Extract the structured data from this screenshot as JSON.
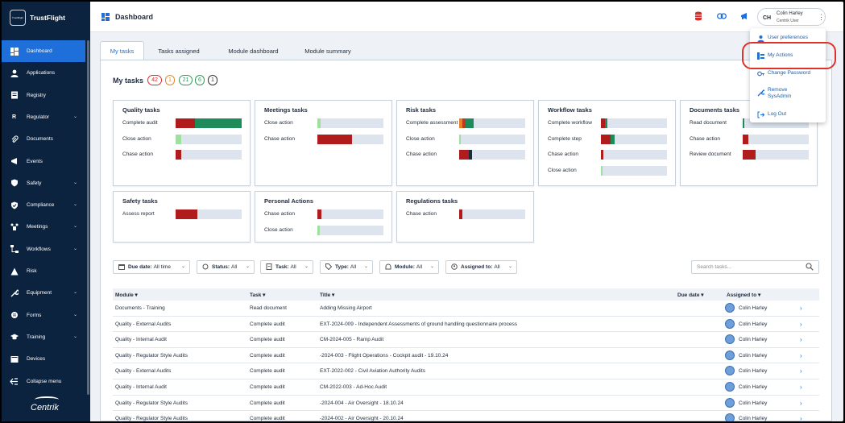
{
  "app": {
    "logo_text": "TrustFlight",
    "logo_box": "TrustFlight"
  },
  "sidebar": {
    "items": [
      {
        "label": "Dashboard",
        "icon": "dashboard-icon",
        "active": true
      },
      {
        "label": "Applications",
        "icon": "person-icon"
      },
      {
        "label": "Registry",
        "icon": "registry-icon"
      },
      {
        "label": "Regulator",
        "icon": "regulator-icon",
        "icon_text": "R",
        "chevron": true
      },
      {
        "label": "Documents",
        "icon": "paperclip-icon"
      },
      {
        "label": "Events",
        "icon": "megaphone-icon"
      },
      {
        "label": "Safety",
        "icon": "shield-icon",
        "chevron": true
      },
      {
        "label": "Compliance",
        "icon": "compliance-shield-icon",
        "chevron": true
      },
      {
        "label": "Meetings",
        "icon": "meetings-icon",
        "chevron": true
      },
      {
        "label": "Workflows",
        "icon": "workflows-icon",
        "chevron": true
      },
      {
        "label": "Risk",
        "icon": "warning-icon"
      },
      {
        "label": "Equipment",
        "icon": "wrench-icon",
        "chevron": true
      },
      {
        "label": "Forms",
        "icon": "forms-icon",
        "chevron": true
      },
      {
        "label": "Training",
        "icon": "graduation-cap-icon",
        "chevron": true
      },
      {
        "label": "Devices",
        "icon": "devices-icon"
      }
    ],
    "collapse_label": "Collapse menu",
    "footer_brand": "Centrik"
  },
  "header": {
    "title": "Dashboard",
    "user": {
      "initials": "CH",
      "name": "Colin Harley",
      "role": "Centrik User"
    },
    "colors": {
      "stack_icon": "#d62d2d",
      "link_icon": "#1e6fd9",
      "announce_icon": "#1e6fd9"
    }
  },
  "tabs": [
    "My tasks",
    "Tasks assigned",
    "Module dashboard",
    "Module summary"
  ],
  "my_tasks": {
    "heading": "My tasks",
    "counts": [
      {
        "value": "42",
        "color": "#d62d2d"
      },
      {
        "value": "1",
        "color": "#e08a2a"
      },
      {
        "value": "21",
        "color": "#2e9a5a"
      },
      {
        "value": "6",
        "color": "#2e9a5a"
      },
      {
        "value": "1",
        "color": "#333333"
      }
    ]
  },
  "cards": [
    {
      "title": "Quality tasks",
      "rows": [
        {
          "label": "Complete audit",
          "segments": [
            {
              "frac": 0.29,
              "color": "#b01c1c"
            },
            {
              "frac": 0.71,
              "color": "#1f8a5a"
            }
          ]
        },
        {
          "label": "Close action",
          "segments": [
            {
              "frac": 0.08,
              "color": "#9fe0a0"
            }
          ]
        },
        {
          "label": "Chase action",
          "segments": [
            {
              "frac": 0.09,
              "color": "#b01c1c"
            }
          ]
        }
      ]
    },
    {
      "title": "Meetings tasks",
      "rows": [
        {
          "label": "Close action",
          "segments": [
            {
              "frac": 0.05,
              "color": "#9fe0a0"
            }
          ]
        },
        {
          "label": "Chase action",
          "segments": [
            {
              "frac": 0.53,
              "color": "#b01c1c"
            }
          ]
        }
      ]
    },
    {
      "title": "Risk tasks",
      "rows": [
        {
          "label": "Complete assessment",
          "segments": [
            {
              "frac": 0.05,
              "color": "#e8822a"
            },
            {
              "frac": 0.05,
              "color": "#c23a1c"
            },
            {
              "frac": 0.12,
              "color": "#1f8a5a"
            }
          ]
        },
        {
          "label": "Close action",
          "segments": [
            {
              "frac": 0.03,
              "color": "#9fe0a0"
            }
          ]
        },
        {
          "label": "Chase action",
          "segments": [
            {
              "frac": 0.15,
              "color": "#b01c1c"
            },
            {
              "frac": 0.04,
              "color": "#1f2a3a"
            }
          ]
        }
      ]
    },
    {
      "title": "Workflow tasks",
      "rows": [
        {
          "label": "Complete workflow",
          "segments": [
            {
              "frac": 0.06,
              "color": "#b01c1c"
            },
            {
              "frac": 0.04,
              "color": "#1f8a5a"
            }
          ]
        },
        {
          "label": "Complete step",
          "segments": [
            {
              "frac": 0.15,
              "color": "#b01c1c"
            },
            {
              "frac": 0.06,
              "color": "#1f8a5a"
            }
          ]
        },
        {
          "label": "Chase action",
          "segments": [
            {
              "frac": 0.04,
              "color": "#b01c1c"
            }
          ]
        },
        {
          "label": "Close action",
          "segments": [
            {
              "frac": 0.03,
              "color": "#9fe0a0"
            }
          ]
        }
      ]
    },
    {
      "title": "Documents tasks",
      "rows": [
        {
          "label": "Read document",
          "segments": [
            {
              "frac": 0.03,
              "color": "#1f8a5a"
            }
          ]
        },
        {
          "label": "Chase action",
          "segments": [
            {
              "frac": 0.09,
              "color": "#b01c1c"
            }
          ]
        },
        {
          "label": "Review document",
          "segments": [
            {
              "frac": 0.2,
              "color": "#b01c1c"
            }
          ]
        }
      ]
    },
    {
      "title": "Safety tasks",
      "rows": [
        {
          "label": "Assess report",
          "segments": [
            {
              "frac": 0.33,
              "color": "#b01c1c"
            }
          ]
        }
      ]
    },
    {
      "title": "Personal Actions",
      "rows": [
        {
          "label": "Chase action",
          "segments": [
            {
              "frac": 0.06,
              "color": "#b01c1c"
            }
          ]
        },
        {
          "label": "Close action",
          "segments": [
            {
              "frac": 0.04,
              "color": "#9fe0a0"
            }
          ]
        }
      ]
    },
    {
      "title": "Regulations tasks",
      "rows": [
        {
          "label": "Chase action",
          "segments": [
            {
              "frac": 0.05,
              "color": "#b01c1c"
            }
          ]
        }
      ]
    }
  ],
  "filters": [
    {
      "label": "Due date:",
      "value": "All time",
      "icon": "calendar-icon"
    },
    {
      "label": "Status:",
      "value": "All",
      "icon": "status-circle-icon"
    },
    {
      "label": "Task:",
      "value": "All",
      "icon": "task-icon"
    },
    {
      "label": "Type:",
      "value": "All",
      "icon": "tag-icon"
    },
    {
      "label": "Module:",
      "value": "All",
      "icon": "module-icon"
    },
    {
      "label": "Assigned to:",
      "value": "All",
      "icon": "assignee-icon"
    }
  ],
  "search": {
    "placeholder": "Search tasks..."
  },
  "table": {
    "headers": [
      "Module",
      "Task",
      "Title",
      "Due date",
      "Assigned to"
    ],
    "rows": [
      {
        "module": "Documents - Training",
        "task": "Read document",
        "title": "Adding Missing Airport",
        "due": "",
        "assignee": "Colin Harley"
      },
      {
        "module": "Quality - External Audits",
        "task": "Complete audit",
        "title": "EXT-2024-009 - Independent Assessments of ground handling questionnaire process",
        "due": "",
        "assignee": "Colin Harley"
      },
      {
        "module": "Quality - Internal Audit",
        "task": "Complete audit",
        "title": "CM-2024-005 - Ramp Audit",
        "due": "",
        "assignee": "Colin Harley"
      },
      {
        "module": "Quality - Regulator Style Audits",
        "task": "Complete audit",
        "title": "-2024-003 - Flight Operations - Cockpit audit - 19.10.24",
        "due": "",
        "assignee": "Colin Harley"
      },
      {
        "module": "Quality - External Audits",
        "task": "Complete audit",
        "title": "EXT-2022-002 - Civil Aviation Authority Audits",
        "due": "",
        "assignee": "Colin Harley"
      },
      {
        "module": "Quality - Internal Audit",
        "task": "Complete audit",
        "title": "CM-2022-003 - Ad-Hoc Audit",
        "due": "",
        "assignee": "Colin Harley"
      },
      {
        "module": "Quality - Regulator Style Audits",
        "task": "Complete audit",
        "title": "-2024-004 - Air Oversight - 18.10.24",
        "due": "",
        "assignee": "Colin Harley"
      },
      {
        "module": "Quality - Regulator Style Audits",
        "task": "Complete audit",
        "title": "-2024-002 - Air Oversight - 20.10.24",
        "due": "",
        "assignee": "Colin Harley"
      }
    ]
  },
  "user_menu": {
    "items": [
      {
        "label": "User preferences",
        "icon": "user-preferences-icon"
      },
      {
        "label": "My Actions",
        "icon": "my-actions-icon"
      },
      {
        "label": "Change Password",
        "icon": "key-icon"
      },
      {
        "label": "Remove SysAdmin",
        "icon": "wrench-icon"
      },
      {
        "label": "Log Out",
        "icon": "logout-icon"
      }
    ],
    "highlight_color": "#e0302a"
  }
}
